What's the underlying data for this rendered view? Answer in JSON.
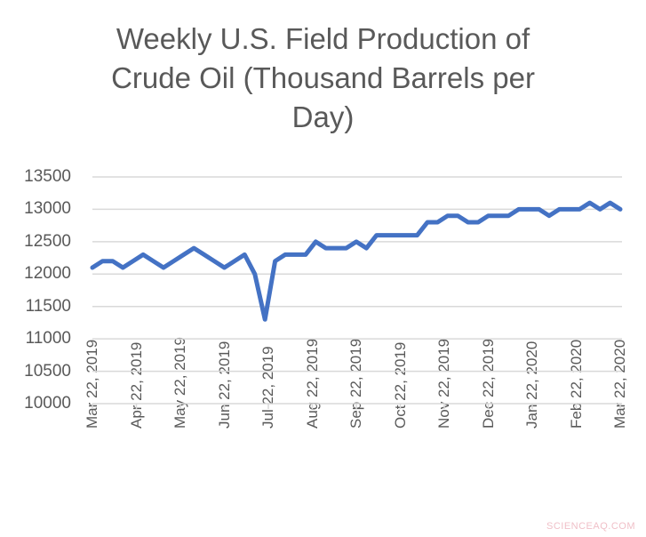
{
  "chart_data": {
    "type": "line",
    "title": "Weekly U.S. Field Production of Crude Oil  (Thousand Barrels per Day)",
    "title_lines": [
      "Weekly U.S. Field Production of",
      "Crude Oil  (Thousand Barrels per",
      "Day)"
    ],
    "xlabel": "",
    "ylabel": "",
    "ylim": [
      10000,
      13500
    ],
    "yticks": [
      "13500",
      "13000",
      "12500",
      "12000",
      "11500",
      "11000",
      "10500",
      "10000"
    ],
    "xticks": [
      "Mar 22, 2019",
      "Apr 22, 2019",
      "May 22, 2019",
      "Jun 22, 2019",
      "Jul 22, 2019",
      "Aug 22, 2019",
      "Sep 22, 2019",
      "Oct 22, 2019",
      "Nov 22, 2019",
      "Dec 22, 2019",
      "Jan 22, 2020",
      "Feb 22, 2020",
      "Mar 22, 2020"
    ],
    "grid": true,
    "legend": null,
    "series": [
      {
        "name": "Weekly U.S. Field Production of Crude Oil",
        "color": "#4472c4",
        "values": [
          12100,
          12200,
          12200,
          12100,
          12200,
          12300,
          12200,
          12100,
          12200,
          12300,
          12400,
          12300,
          12200,
          12100,
          12200,
          12300,
          12000,
          11300,
          12200,
          12300,
          12300,
          12300,
          12500,
          12400,
          12400,
          12400,
          12500,
          12400,
          12600,
          12600,
          12600,
          12600,
          12600,
          12800,
          12800,
          12900,
          12900,
          12800,
          12800,
          12900,
          12900,
          12900,
          13000,
          13000,
          13000,
          12900,
          13000,
          13000,
          13000,
          13100,
          13000,
          13100,
          13000
        ]
      }
    ]
  },
  "watermark": "SCIENCEAQ.COM",
  "colors": {
    "line": "#4472c4",
    "grid": "#d9d9d9",
    "text": "#595959"
  }
}
